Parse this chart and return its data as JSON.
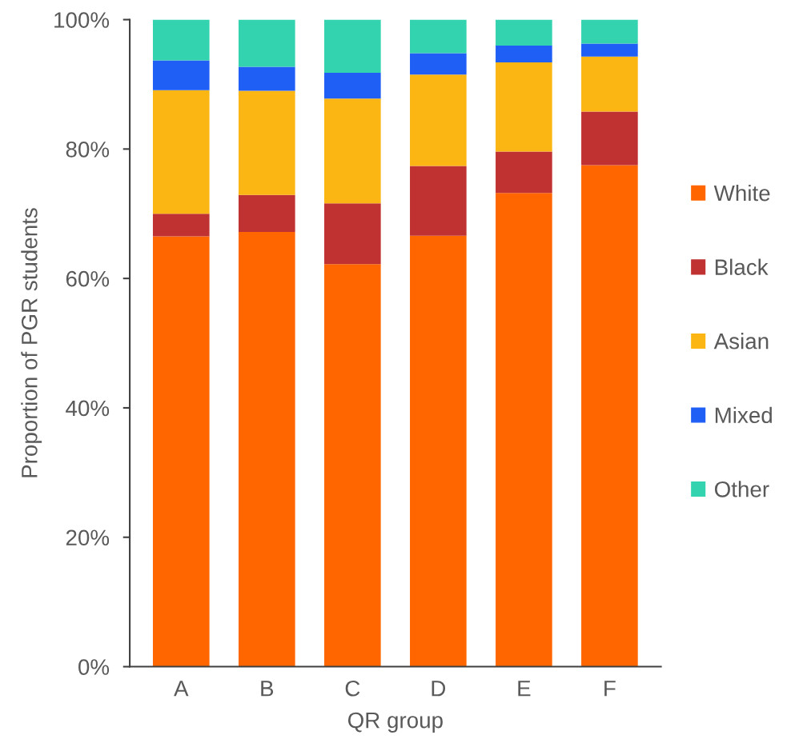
{
  "chart_data": {
    "type": "bar",
    "stacked": true,
    "xlabel": "QR group",
    "ylabel": "Proportion of PGR students",
    "categories": [
      "A",
      "B",
      "C",
      "D",
      "E",
      "F"
    ],
    "series": [
      {
        "name": "White",
        "color": "#ff6600",
        "values": [
          66.5,
          67.2,
          62.2,
          66.6,
          73.2,
          77.5
        ]
      },
      {
        "name": "Black",
        "color": "#c03232",
        "values": [
          3.5,
          5.7,
          9.4,
          10.8,
          6.4,
          8.3
        ]
      },
      {
        "name": "Asian",
        "color": "#fbb614",
        "values": [
          19.1,
          16.1,
          16.2,
          14.1,
          13.8,
          8.5
        ]
      },
      {
        "name": "Mixed",
        "color": "#1f5ff5",
        "values": [
          4.6,
          3.7,
          4.0,
          3.3,
          2.6,
          2.0
        ]
      },
      {
        "name": "Other",
        "color": "#33d3b0",
        "values": [
          6.3,
          7.3,
          8.2,
          5.2,
          4.0,
          3.7
        ]
      }
    ],
    "ylim": [
      0,
      100
    ],
    "yticks": [
      {
        "value": 0,
        "label": "0%"
      },
      {
        "value": 20,
        "label": "20%"
      },
      {
        "value": 40,
        "label": "40%"
      },
      {
        "value": 60,
        "label": "60%"
      },
      {
        "value": 80,
        "label": "80%"
      },
      {
        "value": 100,
        "label": "100%"
      }
    ],
    "grid": false,
    "legend": "right"
  }
}
